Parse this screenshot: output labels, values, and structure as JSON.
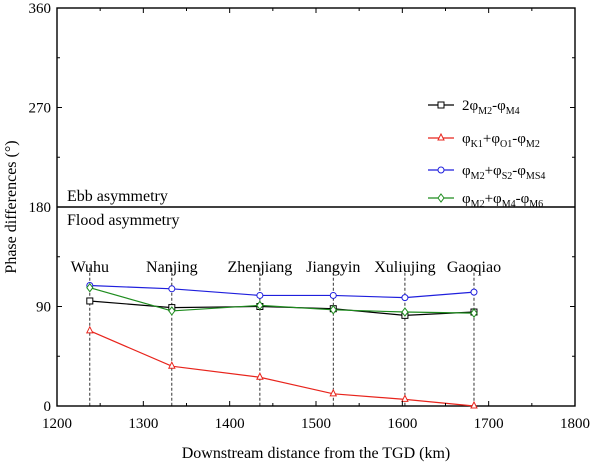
{
  "chart_data": {
    "type": "line",
    "xlabel": "Downstream distance from the TGD (km)",
    "ylabel": "Phase differences (°)",
    "xlim": [
      1200,
      1800
    ],
    "ylim": [
      0,
      360
    ],
    "xticks": [
      1200,
      1300,
      1400,
      1500,
      1600,
      1700,
      1800
    ],
    "yticks": [
      0,
      90,
      180,
      270,
      360
    ],
    "x": [
      1238,
      1333,
      1435,
      1520,
      1603,
      1683
    ],
    "stations": [
      "Wuhu",
      "Nanjing",
      "Zhenjiang",
      "Jiangyin",
      "Xuliujing",
      "Gaoqiao"
    ],
    "threshold": {
      "value": 180,
      "above_label": "Ebb asymmetry",
      "below_label": "Flood asymmetry"
    },
    "legend_position": "right",
    "grid": false,
    "series": [
      {
        "id": "m2m4",
        "color": "#000000",
        "marker": "square",
        "label": [
          {
            "t": "2φ"
          },
          {
            "t": "M2",
            "sub": true
          },
          {
            "t": "-φ"
          },
          {
            "t": "M4",
            "sub": true
          }
        ],
        "values": [
          95,
          89,
          90,
          88,
          82,
          85
        ]
      },
      {
        "id": "k1o1m2",
        "color": "#e8241c",
        "marker": "triangle",
        "label": [
          {
            "t": "φ"
          },
          {
            "t": "K1",
            "sub": true
          },
          {
            "t": "+φ"
          },
          {
            "t": "O1",
            "sub": true
          },
          {
            "t": "-φ"
          },
          {
            "t": "M2",
            "sub": true
          }
        ],
        "values": [
          68,
          36,
          26,
          11,
          6,
          0
        ]
      },
      {
        "id": "m2s2ms4",
        "color": "#1f1fdd",
        "marker": "circle",
        "label": [
          {
            "t": "φ"
          },
          {
            "t": "M2",
            "sub": true
          },
          {
            "t": "+φ"
          },
          {
            "t": "S2",
            "sub": true
          },
          {
            "t": "-φ"
          },
          {
            "t": "MS4",
            "sub": true
          }
        ],
        "values": [
          109,
          106,
          100,
          100,
          98,
          103
        ]
      },
      {
        "id": "m2m4m6",
        "color": "#1e8c1e",
        "marker": "diamond",
        "label": [
          {
            "t": "φ"
          },
          {
            "t": "M2",
            "sub": true
          },
          {
            "t": "+φ"
          },
          {
            "t": "M4",
            "sub": true
          },
          {
            "t": "-φ"
          },
          {
            "t": "M6",
            "sub": true
          }
        ],
        "values": [
          107,
          86,
          91,
          87,
          85,
          84
        ]
      }
    ]
  }
}
